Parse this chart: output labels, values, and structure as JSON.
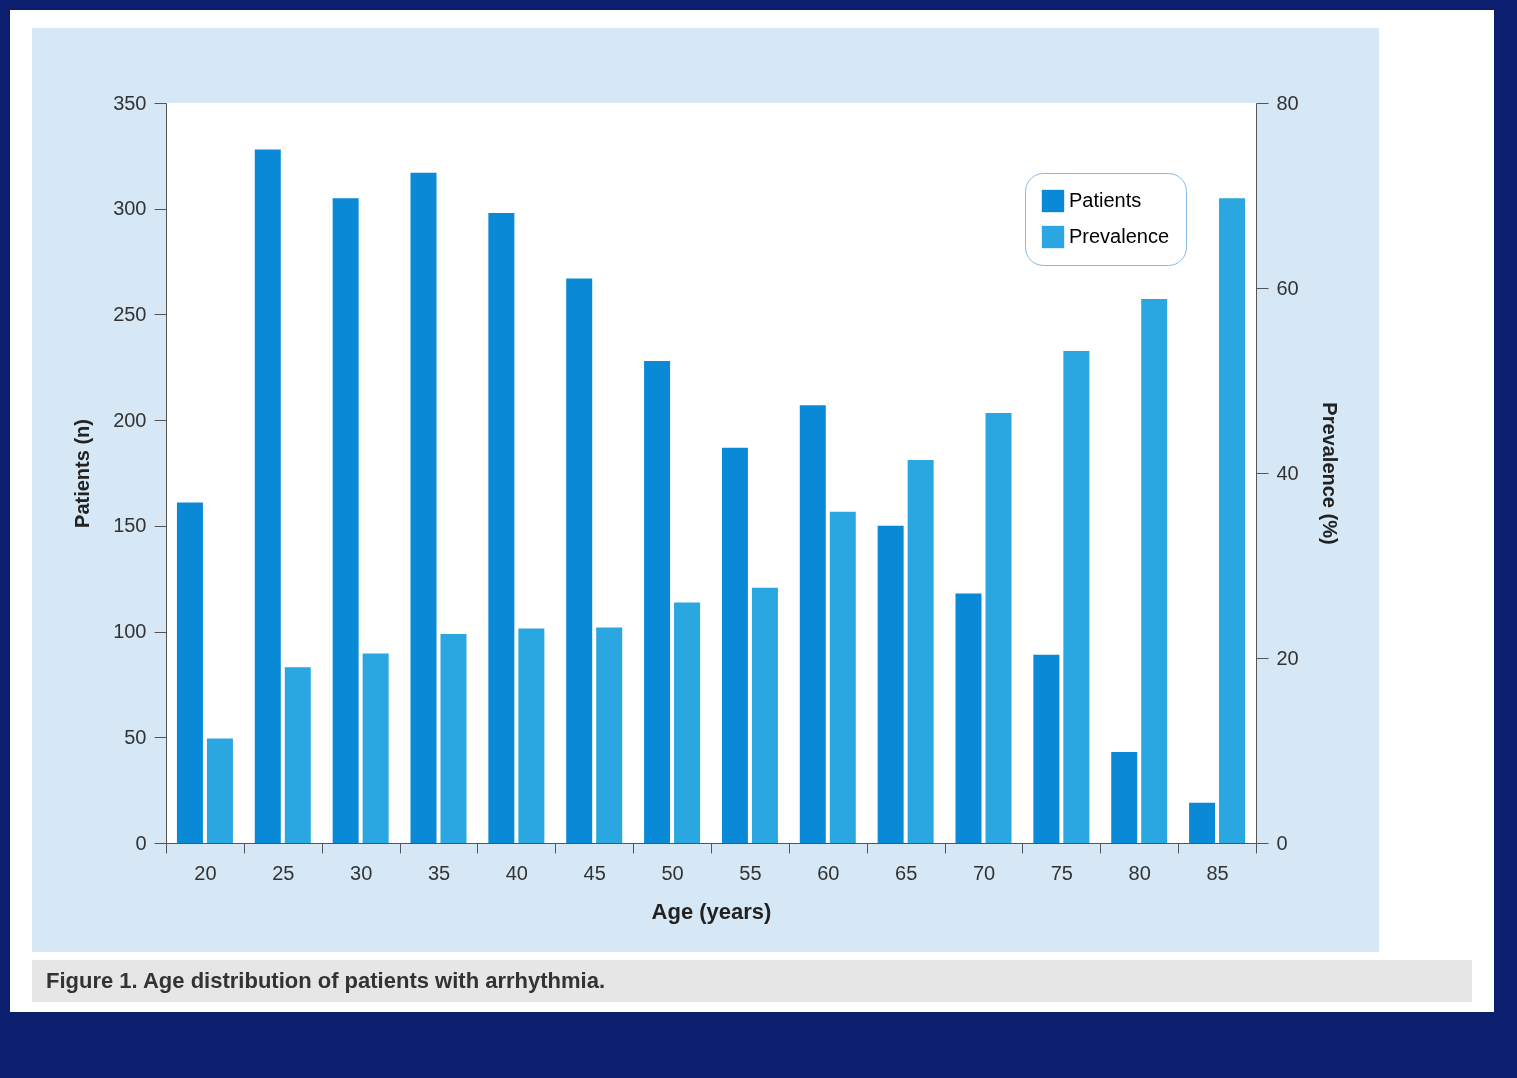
{
  "chart_data": {
    "type": "bar",
    "xlabel": "Age (years)",
    "ylabel": "Patients (n)",
    "y2label": "Prevalence (%)",
    "categories": [
      "20",
      "25",
      "30",
      "35",
      "40",
      "45",
      "50",
      "55",
      "60",
      "65",
      "70",
      "75",
      "80",
      "85"
    ],
    "series": [
      {
        "name": "Patients",
        "color": "#0a8ad6",
        "values": [
          161,
          328,
          305,
          317,
          298,
          267,
          228,
          187,
          207,
          150,
          118,
          89,
          43,
          19
        ]
      },
      {
        "name": "Prevalence",
        "color": "#2aa6e0",
        "axis": "y2",
        "values": [
          11.3,
          19.0,
          20.5,
          22.6,
          23.2,
          23.3,
          26.0,
          27.6,
          35.8,
          41.4,
          46.5,
          53.2,
          58.8,
          69.7
        ]
      }
    ],
    "ylim": [
      0,
      350
    ],
    "yticks": [
      0,
      50,
      100,
      150,
      200,
      250,
      300,
      350
    ],
    "y2lim": [
      0,
      80
    ],
    "y2ticks": [
      0,
      20,
      40,
      60,
      80
    ],
    "grid": false,
    "legend": "top right",
    "annotations": [
      "Figure 1. Age distribution of patients with arrhythmia."
    ]
  }
}
